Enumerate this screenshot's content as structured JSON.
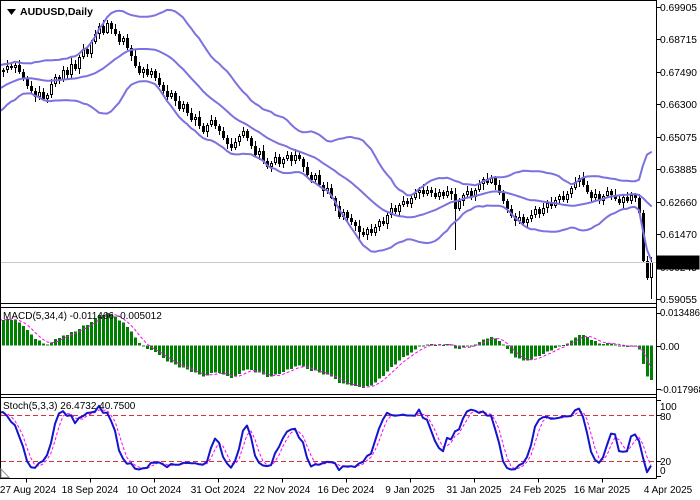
{
  "app": {
    "symbol_label": "AUDUSD,Daily"
  },
  "colors": {
    "bollinger": "#7b72e0",
    "candle_up_fill": "#ffffff",
    "candle_down_fill": "#000000",
    "candle_border": "#000000",
    "macd_bar": "#008000",
    "macd_signal": "#ff00ff",
    "stoch_main": "#1414cc",
    "stoch_signal": "#ff00ff",
    "level_line": "#d23535",
    "price_marker_bg": "#000000",
    "price_marker_fg": "#ffffff",
    "current_price_line": "#c8c8c8",
    "panel_border": "#000000"
  },
  "chart_data": [
    {
      "type": "candlestick",
      "title": "AUDUSD,Daily",
      "x_labels": [
        "27 Aug 2024",
        "18 Sep 2024",
        "10 Oct 2024",
        "31 Oct 2024",
        "22 Nov 2024",
        "16 Dec 2024",
        "9 Jan 2025",
        "31 Jan 2025",
        "24 Feb 2025",
        "16 Mar 2025",
        "4 Apr 2025"
      ],
      "y_labels": [
        "0.69905",
        "0.68715",
        "0.67490",
        "0.66300",
        "0.65075",
        "0.63885",
        "0.62660",
        "0.61470",
        "0.60245",
        "0.59055"
      ],
      "y_label_values": [
        0.69905,
        0.68715,
        0.6749,
        0.663,
        0.65075,
        0.63885,
        0.6266,
        0.6147,
        0.60245,
        0.59055
      ],
      "current_price": "0.60435",
      "current_price_value": 0.60435,
      "first_open": 0.6398,
      "history_closes": [
        0.6405,
        0.6425,
        0.645,
        0.6435,
        0.6465,
        0.649,
        0.6478,
        0.6505,
        0.653,
        0.6515,
        0.6545,
        0.657,
        0.6558,
        0.6585,
        0.661,
        0.6595,
        0.6625,
        0.665,
        0.6638,
        0.6665,
        0.669,
        0.6675,
        0.67,
        0.672,
        0.6708,
        0.6688,
        0.6712,
        0.6695,
        0.6715,
        0.6705,
        0.6722,
        0.6735,
        0.6742,
        0.675
      ],
      "closes": [
        0.6755,
        0.6772,
        0.6762,
        0.6775,
        0.675,
        0.6726,
        0.6698,
        0.6678,
        0.6656,
        0.6676,
        0.665,
        0.6662,
        0.6705,
        0.6732,
        0.6718,
        0.6756,
        0.6738,
        0.678,
        0.676,
        0.6805,
        0.6835,
        0.6815,
        0.6862,
        0.689,
        0.692,
        0.6895,
        0.693,
        0.6908,
        0.689,
        0.6862,
        0.6875,
        0.6838,
        0.681,
        0.6772,
        0.6745,
        0.676,
        0.6738,
        0.6752,
        0.6728,
        0.67,
        0.668,
        0.6655,
        0.667,
        0.664,
        0.6612,
        0.663,
        0.6598,
        0.657,
        0.6582,
        0.6548,
        0.6525,
        0.6552,
        0.657,
        0.6548,
        0.6528,
        0.6505,
        0.6482,
        0.6465,
        0.649,
        0.6512,
        0.6528,
        0.6505,
        0.6475,
        0.6442,
        0.6455,
        0.6418,
        0.6395,
        0.6412,
        0.6432,
        0.6408,
        0.6425,
        0.644,
        0.6418,
        0.6442,
        0.6425,
        0.6395,
        0.6365,
        0.6348,
        0.6368,
        0.633,
        0.6305,
        0.6318,
        0.6282,
        0.625,
        0.621,
        0.6228,
        0.6205,
        0.619,
        0.6178,
        0.6155,
        0.6142,
        0.6165,
        0.615,
        0.6172,
        0.6195,
        0.6185,
        0.6218,
        0.6242,
        0.6228,
        0.6255,
        0.627,
        0.6258,
        0.6282,
        0.6298,
        0.631,
        0.6295,
        0.6312,
        0.63,
        0.6285,
        0.6302,
        0.629,
        0.6308,
        0.6295,
        0.624,
        0.6268,
        0.6292,
        0.6308,
        0.6285,
        0.631,
        0.6332,
        0.635,
        0.6338,
        0.6355,
        0.6328,
        0.63,
        0.627,
        0.624,
        0.6215,
        0.6195,
        0.621,
        0.6188,
        0.6202,
        0.6218,
        0.624,
        0.6222,
        0.6245,
        0.6262,
        0.625,
        0.6272,
        0.6288,
        0.6275,
        0.6295,
        0.6318,
        0.6342,
        0.6355,
        0.633,
        0.6302,
        0.6282,
        0.6295,
        0.627,
        0.6288,
        0.6305,
        0.6292,
        0.6278,
        0.6262,
        0.6285,
        0.627,
        0.6292,
        0.628,
        0.6225,
        0.6045,
        0.5985,
        0.60435
      ],
      "wick_hi_pattern": [
        0.0007,
        0.0016,
        0.001,
        0.0022,
        0.0013,
        0.0008,
        0.0018,
        0.0011
      ],
      "wick_lo_pattern": [
        0.0014,
        0.0008,
        0.002,
        0.001,
        0.0006,
        0.0017,
        0.0009,
        0.0012
      ],
      "wick_overrides": {
        "26": {
          "h": 0.6943
        },
        "89": {
          "l": 0.6128
        },
        "113": {
          "l": 0.6088
        },
        "160": {
          "l": 0.6038
        },
        "162": {
          "h": 0.6062,
          "l": 0.5905
        }
      },
      "overlays": [
        {
          "name": "Bollinger Bands",
          "period": 20,
          "deviation": 2
        }
      ]
    },
    {
      "type": "bar",
      "name": "MACD",
      "label": "MACD(5,34,4) -0.011466 -0.005012",
      "params": {
        "fast_ema": 5,
        "slow_ema": 34,
        "signal_sma": 4
      },
      "y_labels": [
        "0.013486",
        "0.00",
        "-0.017968"
      ],
      "y_label_values": [
        0.013486,
        0,
        -0.017968
      ],
      "source": "computed from candles"
    },
    {
      "type": "line",
      "name": "Stochastic",
      "label": "Stoch(5,3,3) 26.4732 40.7500",
      "params": {
        "k": 5,
        "slowing": 3,
        "d": 3
      },
      "levels": [
        80,
        20
      ],
      "y_labels": [
        "100",
        "80",
        "20",
        "0"
      ],
      "y_label_values": [
        100,
        80,
        20,
        0
      ],
      "source": "computed from candles"
    }
  ]
}
